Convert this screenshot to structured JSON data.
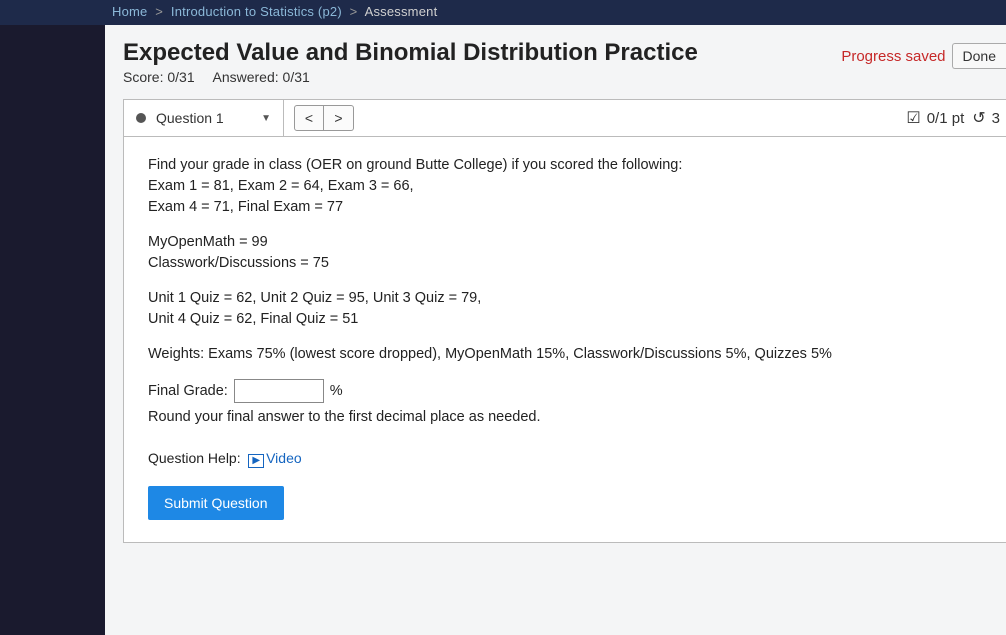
{
  "breadcrumb": {
    "home": "Home",
    "course": "Introduction to Statistics (p2)",
    "current": "Assessment"
  },
  "header": {
    "title": "Expected Value and Binomial Distribution Practice",
    "score_label": "Score:",
    "score_value": "0/31",
    "answered_label": "Answered:",
    "answered_value": "0/31",
    "progress_saved": "Progress saved",
    "done": "Done"
  },
  "qnav": {
    "label": "Question 1",
    "prev": "<",
    "next": ">",
    "points": "0/1 pt",
    "attempts": "3"
  },
  "question": {
    "line1": "Find your grade in class (OER on ground Butte College) if you scored the following:",
    "line2": "Exam 1 = 81, Exam 2 = 64, Exam 3 = 66,",
    "line3": "Exam 4 = 71, Final Exam = 77",
    "line4": "MyOpenMath = 99",
    "line5": "Classwork/Discussions = 75",
    "line6": "Unit 1 Quiz = 62, Unit 2 Quiz = 95, Unit 3 Quiz = 79,",
    "line7": "Unit 4 Quiz = 62, Final Quiz = 51",
    "weights": "Weights: Exams 75% (lowest score dropped), MyOpenMath 15%, Classwork/Discussions 5%, Quizzes 5%",
    "final_label": "Final Grade:",
    "percent": "%",
    "round_note": "Round your final answer to the first decimal place as needed.",
    "help_label": "Question Help:",
    "video": "Video",
    "submit": "Submit Question"
  }
}
